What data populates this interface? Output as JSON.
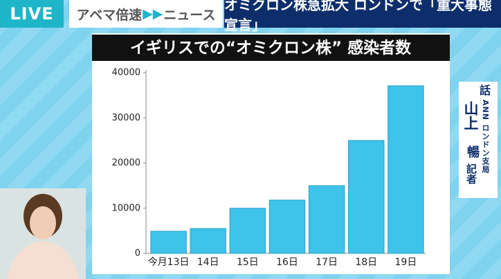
{
  "live": "LIVE",
  "brand": {
    "name": "アベマ倍速",
    "section": "ニュース"
  },
  "headline": "オミクロン株急拡大 ロンドンで「重大事態宣言」",
  "reporter": {
    "label": "話",
    "bureau": "ANN ロンドン支局",
    "surname": "山上",
    "given_name": "暢",
    "title": "記者"
  },
  "chart_data": {
    "type": "bar",
    "title": "イギリスでの“オミクロン株” 感染者数",
    "categories": [
      "今月13日",
      "14日",
      "15日",
      "16日",
      "17日",
      "18日",
      "19日"
    ],
    "values": [
      4900,
      5500,
      10000,
      11800,
      15000,
      25000,
      37100
    ],
    "color": "#3ec3ea",
    "ylim": [
      0,
      40000
    ],
    "yticks": [
      0,
      10000,
      20000,
      30000,
      40000
    ],
    "grid": false
  }
}
